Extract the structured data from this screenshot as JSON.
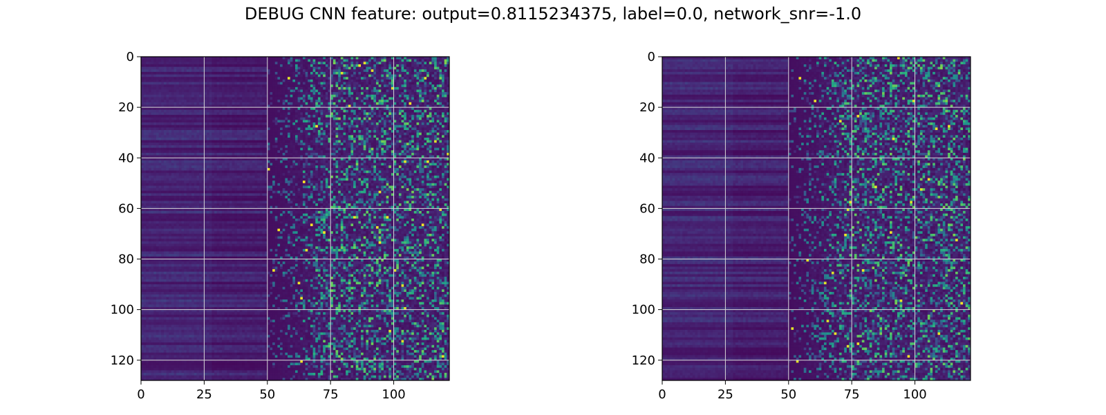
{
  "title": "DEBUG CNN feature: output=0.8115234375, label=0.0, network_snr=-1.0",
  "chart_data": [
    {
      "type": "heatmap",
      "title": "",
      "xlabel": "",
      "ylabel": "",
      "colormap": "viridis",
      "grid": true,
      "grid_color": "#d9d9d9",
      "shape": [
        128,
        122
      ],
      "xlim": [
        0,
        122
      ],
      "ylim": [
        128,
        0
      ],
      "xticks": [
        0,
        25,
        50,
        75,
        100
      ],
      "yticks": [
        0,
        20,
        40,
        60,
        80,
        100,
        120
      ],
      "columns_description_visible": "cols 0-49 uniformly low with horizontal banding; cols 50-122 speckled with scattered high values",
      "seed": 11
    },
    {
      "type": "heatmap",
      "title": "",
      "xlabel": "",
      "ylabel": "",
      "colormap": "viridis",
      "grid": true,
      "grid_color": "#d9d9d9",
      "shape": [
        128,
        122
      ],
      "xlim": [
        0,
        122
      ],
      "ylim": [
        128,
        0
      ],
      "xticks": [
        0,
        25,
        50,
        75,
        100
      ],
      "yticks": [
        0,
        20,
        40,
        60,
        80,
        100,
        120
      ],
      "columns_description_visible": "cols 0-49 uniformly low with horizontal banding; cols 50-122 speckled with scattered high values",
      "seed": 29
    }
  ]
}
